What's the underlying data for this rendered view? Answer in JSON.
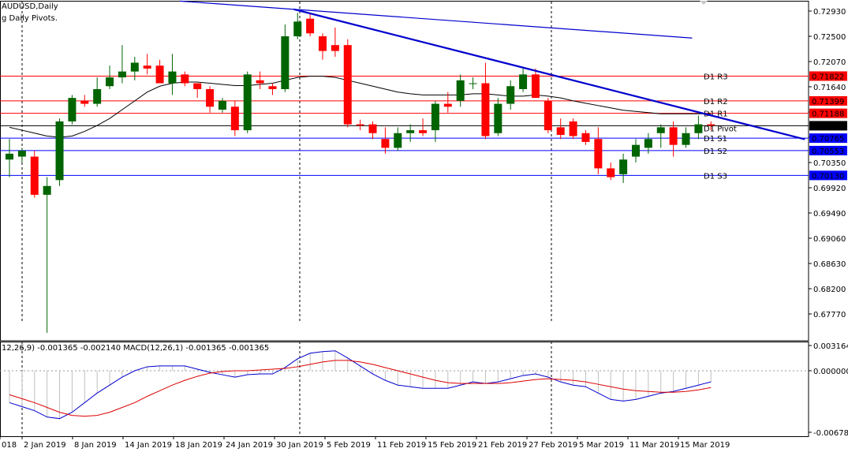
{
  "header": {
    "symbol": "AUDUSD,Daily",
    "indicator": "g Daily Pivots."
  },
  "macd_header": {
    "text": "12,26,9) -0.001365 -0.002140 MACD(12,26,1) -0.001365 -0.001365"
  },
  "colors": {
    "bull": "#006400",
    "bear": "#ff0000",
    "pivot_red": "#ff0000",
    "pivot_blue": "#0000ff",
    "trendline": "#0000cd",
    "ma": "#000000",
    "macd_main": "#0000cd",
    "macd_signal": "#dc0000",
    "label_box": "#0000ff"
  },
  "price_axis": {
    "ticks": [
      "0.72930",
      "0.72500",
      "0.72070",
      "0.71640",
      "0.71210",
      "0.70780",
      "0.70350",
      "0.69920",
      "0.69490",
      "0.69060",
      "0.68630",
      "0.68200",
      "0.67770"
    ],
    "min": 0.675,
    "max": 0.7304
  },
  "macd_axis": {
    "ticks": [
      "0.003164",
      "0.000000",
      "-0.006780"
    ],
    "min": -0.0068,
    "max": 0.0032
  },
  "date_labels": [
    "018",
    "2 Jan 2019",
    "8 Jan 2019",
    "14 Jan 2019",
    "18 Jan 2019",
    "24 Jan 2019",
    "30 Jan 2019",
    "5 Feb 2019",
    "11 Feb 2019",
    "15 Feb 2019",
    "21 Feb 2019",
    "27 Feb 2019",
    "5 Mar 2019",
    "11 Mar 2019",
    "15 Mar 2019"
  ],
  "pivots": [
    {
      "name": "D1 R3",
      "value": 0.71822,
      "price_label": "0.71822",
      "kind": "r"
    },
    {
      "name": "D1 R2",
      "value": 0.71399,
      "price_label": "0.71399",
      "kind": "r"
    },
    {
      "name": "D1 R1",
      "value": 0.71188,
      "price_label": "0.71188",
      "kind": "r"
    },
    {
      "name": "D1 Pivot",
      "value": 0.70976,
      "price_label": "0.70976",
      "kind": "p"
    },
    {
      "name": "D1 S1",
      "value": 0.70765,
      "price_label": "0.70765",
      "kind": "s"
    },
    {
      "name": "D1 S2",
      "value": 0.70553,
      "price_label": "0.70553",
      "kind": "s"
    },
    {
      "name": "D1 S3",
      "value": 0.7013,
      "price_label": "0.70130",
      "kind": "s"
    }
  ],
  "chart_data": {
    "type": "candlestick",
    "title": "AUDUSD,Daily",
    "series_ohlc": [
      {
        "o": 0.704,
        "h": 0.7075,
        "l": 0.701,
        "c": 0.705
      },
      {
        "o": 0.7045,
        "h": 0.706,
        "l": 0.7035,
        "c": 0.7055
      },
      {
        "o": 0.7045,
        "h": 0.7055,
        "l": 0.6975,
        "c": 0.698
      },
      {
        "o": 0.698,
        "h": 0.701,
        "l": 0.6745,
        "c": 0.6995
      },
      {
        "o": 0.7005,
        "h": 0.711,
        "l": 0.6995,
        "c": 0.7105
      },
      {
        "o": 0.7105,
        "h": 0.715,
        "l": 0.71,
        "c": 0.7145
      },
      {
        "o": 0.714,
        "h": 0.715,
        "l": 0.713,
        "c": 0.7135
      },
      {
        "o": 0.7135,
        "h": 0.718,
        "l": 0.713,
        "c": 0.716
      },
      {
        "o": 0.7165,
        "h": 0.72,
        "l": 0.716,
        "c": 0.718
      },
      {
        "o": 0.718,
        "h": 0.7235,
        "l": 0.717,
        "c": 0.719
      },
      {
        "o": 0.719,
        "h": 0.7215,
        "l": 0.7175,
        "c": 0.7205
      },
      {
        "o": 0.72,
        "h": 0.722,
        "l": 0.7185,
        "c": 0.7195
      },
      {
        "o": 0.72,
        "h": 0.721,
        "l": 0.717,
        "c": 0.717
      },
      {
        "o": 0.717,
        "h": 0.722,
        "l": 0.715,
        "c": 0.719
      },
      {
        "o": 0.7185,
        "h": 0.719,
        "l": 0.7165,
        "c": 0.717
      },
      {
        "o": 0.717,
        "h": 0.717,
        "l": 0.7145,
        "c": 0.716
      },
      {
        "o": 0.716,
        "h": 0.7165,
        "l": 0.712,
        "c": 0.713
      },
      {
        "o": 0.7125,
        "h": 0.7145,
        "l": 0.712,
        "c": 0.714
      },
      {
        "o": 0.713,
        "h": 0.714,
        "l": 0.708,
        "c": 0.709
      },
      {
        "o": 0.709,
        "h": 0.719,
        "l": 0.7085,
        "c": 0.7185
      },
      {
        "o": 0.7175,
        "h": 0.719,
        "l": 0.716,
        "c": 0.717
      },
      {
        "o": 0.7165,
        "h": 0.717,
        "l": 0.715,
        "c": 0.716
      },
      {
        "o": 0.716,
        "h": 0.727,
        "l": 0.7155,
        "c": 0.725
      },
      {
        "o": 0.725,
        "h": 0.729,
        "l": 0.7245,
        "c": 0.7275
      },
      {
        "o": 0.728,
        "h": 0.729,
        "l": 0.725,
        "c": 0.7255
      },
      {
        "o": 0.725,
        "h": 0.7255,
        "l": 0.721,
        "c": 0.7225
      },
      {
        "o": 0.7235,
        "h": 0.7265,
        "l": 0.7215,
        "c": 0.7225
      },
      {
        "o": 0.7235,
        "h": 0.7245,
        "l": 0.7095,
        "c": 0.71
      },
      {
        "o": 0.71,
        "h": 0.7108,
        "l": 0.709,
        "c": 0.7098
      },
      {
        "o": 0.71,
        "h": 0.7105,
        "l": 0.7075,
        "c": 0.7085
      },
      {
        "o": 0.7075,
        "h": 0.7095,
        "l": 0.705,
        "c": 0.706
      },
      {
        "o": 0.706,
        "h": 0.7095,
        "l": 0.7055,
        "c": 0.7085
      },
      {
        "o": 0.7085,
        "h": 0.71,
        "l": 0.707,
        "c": 0.709
      },
      {
        "o": 0.709,
        "h": 0.711,
        "l": 0.708,
        "c": 0.7085
      },
      {
        "o": 0.709,
        "h": 0.714,
        "l": 0.707,
        "c": 0.7135
      },
      {
        "o": 0.7135,
        "h": 0.7155,
        "l": 0.712,
        "c": 0.713
      },
      {
        "o": 0.714,
        "h": 0.7185,
        "l": 0.713,
        "c": 0.7175
      },
      {
        "o": 0.717,
        "h": 0.718,
        "l": 0.716,
        "c": 0.717
      },
      {
        "o": 0.717,
        "h": 0.7205,
        "l": 0.7075,
        "c": 0.708
      },
      {
        "o": 0.7085,
        "h": 0.7145,
        "l": 0.708,
        "c": 0.7135
      },
      {
        "o": 0.7135,
        "h": 0.7175,
        "l": 0.7125,
        "c": 0.7165
      },
      {
        "o": 0.716,
        "h": 0.7195,
        "l": 0.7155,
        "c": 0.7185
      },
      {
        "o": 0.7185,
        "h": 0.7195,
        "l": 0.7145,
        "c": 0.7145
      },
      {
        "o": 0.714,
        "h": 0.7145,
        "l": 0.7085,
        "c": 0.709
      },
      {
        "o": 0.7095,
        "h": 0.711,
        "l": 0.7075,
        "c": 0.7082
      },
      {
        "o": 0.7105,
        "h": 0.711,
        "l": 0.7075,
        "c": 0.708
      },
      {
        "o": 0.7085,
        "h": 0.709,
        "l": 0.7065,
        "c": 0.707
      },
      {
        "o": 0.7075,
        "h": 0.7095,
        "l": 0.7015,
        "c": 0.7025
      },
      {
        "o": 0.7025,
        "h": 0.7035,
        "l": 0.7005,
        "c": 0.701
      },
      {
        "o": 0.7015,
        "h": 0.705,
        "l": 0.7,
        "c": 0.704
      },
      {
        "o": 0.7045,
        "h": 0.7075,
        "l": 0.7035,
        "c": 0.7065
      },
      {
        "o": 0.706,
        "h": 0.7085,
        "l": 0.705,
        "c": 0.7075
      },
      {
        "o": 0.7085,
        "h": 0.71,
        "l": 0.706,
        "c": 0.7095
      },
      {
        "o": 0.7095,
        "h": 0.7105,
        "l": 0.7045,
        "c": 0.7065
      },
      {
        "o": 0.7065,
        "h": 0.7095,
        "l": 0.706,
        "c": 0.7085
      },
      {
        "o": 0.7085,
        "h": 0.7115,
        "l": 0.7075,
        "c": 0.71
      },
      {
        "o": 0.71,
        "h": 0.7105,
        "l": 0.709,
        "c": 0.7098
      }
    ],
    "ma_values": [
      0.7095,
      0.709,
      0.7085,
      0.708,
      0.7078,
      0.708,
      0.7088,
      0.7098,
      0.711,
      0.7125,
      0.714,
      0.7155,
      0.7165,
      0.717,
      0.7172,
      0.7172,
      0.717,
      0.7168,
      0.7166,
      0.7166,
      0.7168,
      0.717,
      0.7175,
      0.718,
      0.7182,
      0.7182,
      0.718,
      0.7175,
      0.717,
      0.7165,
      0.716,
      0.7155,
      0.7152,
      0.715,
      0.715,
      0.715,
      0.715,
      0.7152,
      0.7152,
      0.715,
      0.7148,
      0.7148,
      0.715,
      0.7148,
      0.7145,
      0.714,
      0.7136,
      0.7132,
      0.7128,
      0.7124,
      0.7122,
      0.712,
      0.7118,
      0.7118,
      0.7118,
      0.7118,
      0.7118
    ],
    "trendline": {
      "from": {
        "bar": 22.7,
        "price": 0.7296
      },
      "to": {
        "bar": 63.5,
        "price": 0.70745
      }
    },
    "upper_line": {
      "from": {
        "bar": 13.6,
        "price": 0.731
      },
      "to": {
        "bar": 54.5,
        "price": 0.7247
      }
    },
    "macd_main": [
      -0.004,
      -0.0045,
      -0.005,
      -0.0058,
      -0.006,
      -0.0052,
      -0.004,
      -0.0028,
      -0.0018,
      -0.0008,
      0.0,
      0.0005,
      0.0006,
      0.0006,
      0.0006,
      0.0002,
      -0.0002,
      -0.0005,
      -0.0008,
      -0.0005,
      -0.0004,
      -0.0004,
      0.0004,
      0.0015,
      0.0022,
      0.0024,
      0.0025,
      0.0016,
      0.0006,
      -0.0004,
      -0.0012,
      -0.0018,
      -0.002,
      -0.0022,
      -0.0022,
      -0.0022,
      -0.0018,
      -0.0014,
      -0.0016,
      -0.0014,
      -0.001,
      -0.0006,
      -0.0004,
      -0.0008,
      -0.0014,
      -0.0018,
      -0.002,
      -0.0028,
      -0.0036,
      -0.0038,
      -0.0036,
      -0.0032,
      -0.0028,
      -0.0026,
      -0.0022,
      -0.0018,
      -0.0014
    ],
    "macd_signal": [
      -0.003,
      -0.0035,
      -0.004,
      -0.0046,
      -0.0052,
      -0.0056,
      -0.0057,
      -0.0056,
      -0.0052,
      -0.0046,
      -0.004,
      -0.0032,
      -0.0025,
      -0.0018,
      -0.0012,
      -0.0007,
      -0.0003,
      -0.0001,
      0.0,
      0.0,
      0.0001,
      0.0002,
      0.0003,
      0.0005,
      0.0008,
      0.0011,
      0.0013,
      0.0013,
      0.0011,
      0.0008,
      0.0004,
      0.0,
      -0.0004,
      -0.0008,
      -0.0012,
      -0.0015,
      -0.0016,
      -0.0016,
      -0.0016,
      -0.0016,
      -0.0015,
      -0.0013,
      -0.0011,
      -0.001,
      -0.0011,
      -0.0012,
      -0.0014,
      -0.0017,
      -0.002,
      -0.0023,
      -0.0025,
      -0.0026,
      -0.0027,
      -0.0027,
      -0.0026,
      -0.0024,
      -0.0021
    ]
  }
}
